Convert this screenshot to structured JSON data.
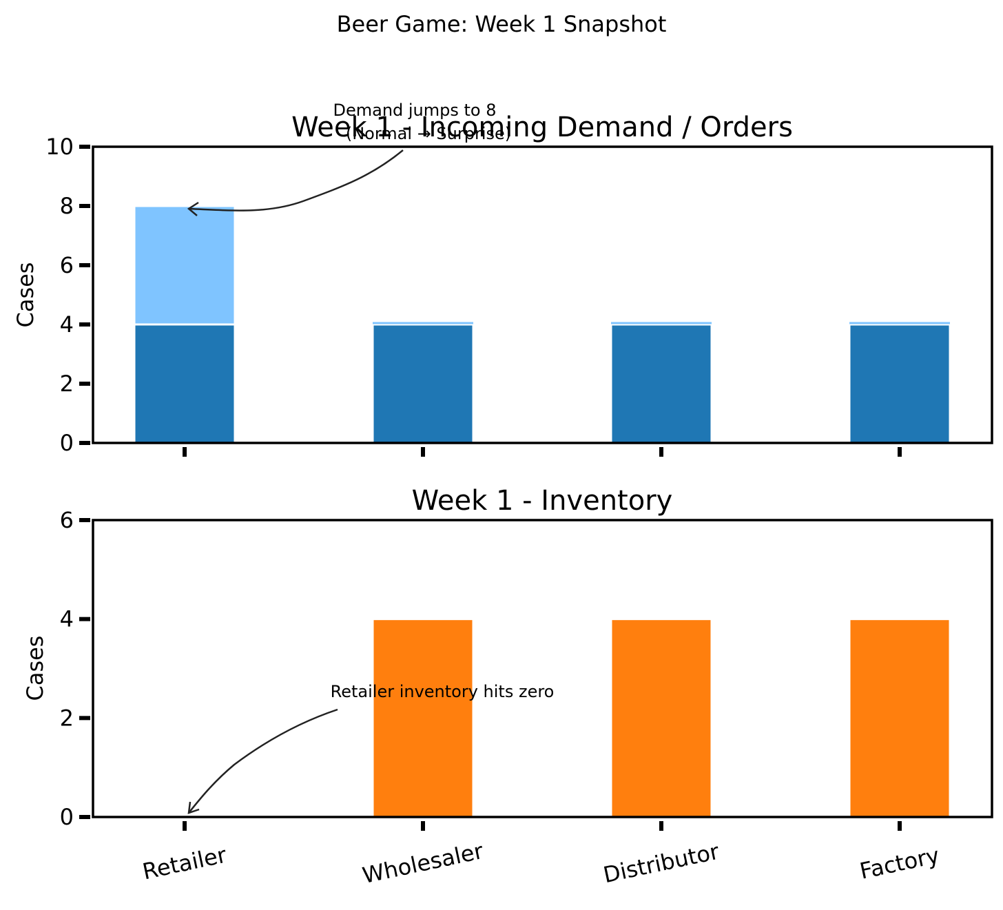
{
  "figure": {
    "suptitle": "Beer Game: Week 1 Snapshot"
  },
  "colors": {
    "demand": "#1f77b4",
    "orders_extra": "#7fc4ff",
    "inventory": "#ff7f0e"
  },
  "chart_data": [
    {
      "type": "bar",
      "stacked": true,
      "title": "Week 1 - Incoming Demand / Orders",
      "ylabel": "Cases",
      "ylim": [
        0,
        10
      ],
      "yticks": [
        0,
        2,
        4,
        6,
        8,
        10
      ],
      "categories": [
        "Retailer",
        "Wholesaler",
        "Distributor",
        "Factory"
      ],
      "series": [
        {
          "values": [
            4,
            4,
            4,
            4
          ]
        },
        {
          "values": [
            4,
            0,
            0,
            0
          ]
        }
      ],
      "annotation": {
        "text": "Demand jumps to 8",
        "subtext": "(Normal → Surprise)",
        "category": "Retailer",
        "value": 8
      }
    },
    {
      "type": "bar",
      "title": "Week 1 - Inventory",
      "ylabel": "Cases",
      "ylim": [
        0,
        6
      ],
      "yticks": [
        0,
        2,
        4,
        6
      ],
      "categories": [
        "Retailer",
        "Wholesaler",
        "Distributor",
        "Factory"
      ],
      "series": [
        {
          "values": [
            0,
            4,
            4,
            4
          ]
        }
      ],
      "annotation": {
        "text": "Retailer inventory hits zero",
        "category": "Retailer",
        "value": 0
      }
    }
  ]
}
